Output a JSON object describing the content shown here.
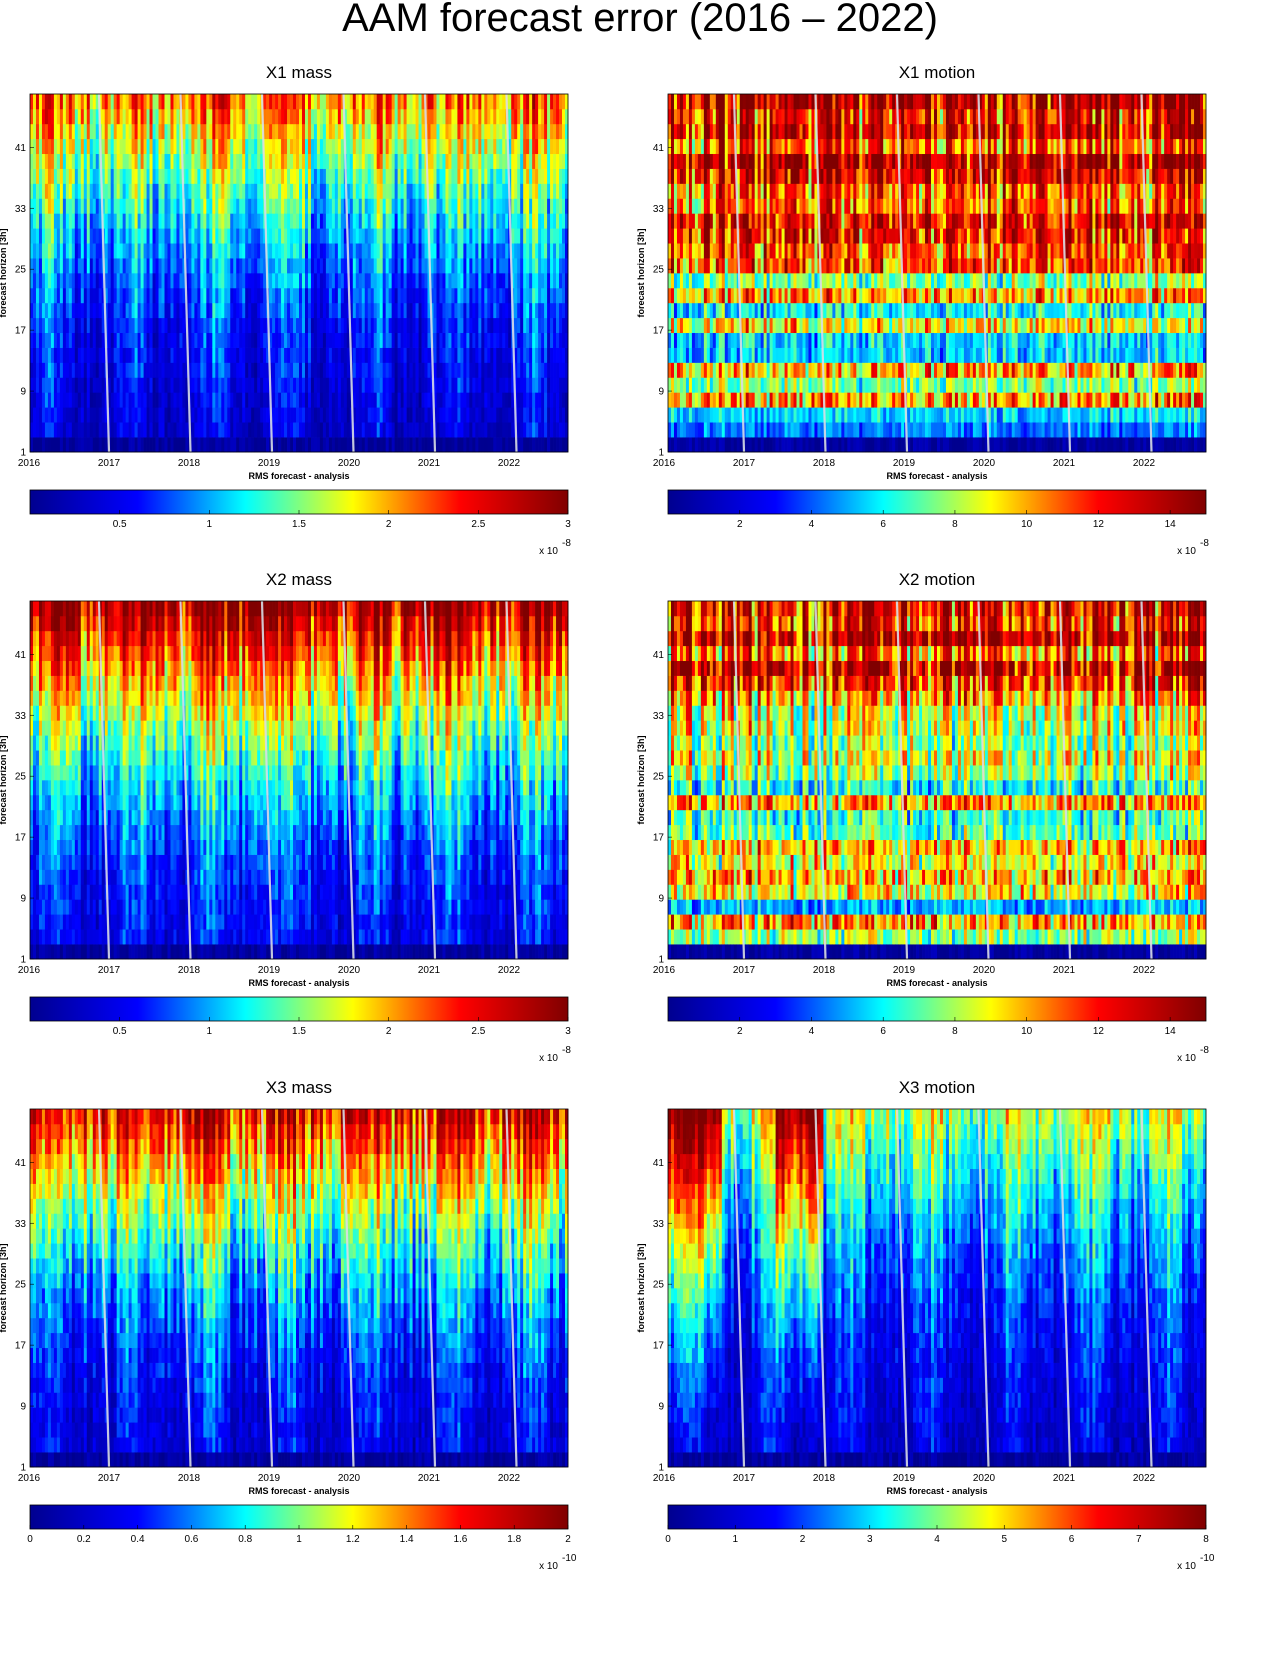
{
  "title": "AAM forecast error (2016 – 2022)",
  "xlabel": "RMS forecast - analysis",
  "ylabel": "forecast horizon [3h]",
  "colormap": [
    "#00008f",
    "#0000ff",
    "#00ffff",
    "#ffff00",
    "#ff0000",
    "#800000"
  ],
  "gap_line_color": "#d9dde6",
  "chart_data": [
    {
      "type": "heatmap",
      "title": "X1 mass",
      "x_ticks": [
        "2016",
        "2017",
        "2018",
        "2019",
        "2020",
        "2021",
        "2022"
      ],
      "y_ticks": [
        "1",
        "9",
        "17",
        "25",
        "33",
        "41"
      ],
      "x_range": [
        2016.0,
        2022.72
      ],
      "y_range": [
        1,
        48
      ],
      "colorbar": {
        "ticks": [
          "0.5",
          "1",
          "1.5",
          "2",
          "2.5",
          "3"
        ],
        "tick_values": [
          0.5,
          1,
          1.5,
          2,
          2.5,
          3
        ],
        "range": [
          0,
          3
        ],
        "multiplier": "x 10",
        "exponent": "-8"
      }
    },
    {
      "type": "heatmap",
      "title": "X1 motion",
      "x_ticks": [
        "2016",
        "2017",
        "2018",
        "2019",
        "2020",
        "2021",
        "2022"
      ],
      "y_ticks": [
        "1",
        "9",
        "17",
        "25",
        "33",
        "41"
      ],
      "x_range": [
        2016.0,
        2022.72
      ],
      "y_range": [
        1,
        48
      ],
      "colorbar": {
        "ticks": [
          "2",
          "4",
          "6",
          "8",
          "10",
          "12",
          "14"
        ],
        "tick_values": [
          2,
          4,
          6,
          8,
          10,
          12,
          14
        ],
        "range": [
          0,
          15
        ],
        "multiplier": "x 10",
        "exponent": "-8"
      }
    },
    {
      "type": "heatmap",
      "title": "X2 mass",
      "x_ticks": [
        "2016",
        "2017",
        "2018",
        "2019",
        "2020",
        "2021",
        "2022"
      ],
      "y_ticks": [
        "1",
        "9",
        "17",
        "25",
        "33",
        "41"
      ],
      "x_range": [
        2016.0,
        2022.72
      ],
      "y_range": [
        1,
        48
      ],
      "colorbar": {
        "ticks": [
          "0.5",
          "1",
          "1.5",
          "2",
          "2.5",
          "3"
        ],
        "tick_values": [
          0.5,
          1,
          1.5,
          2,
          2.5,
          3
        ],
        "range": [
          0,
          3
        ],
        "multiplier": "x 10",
        "exponent": "-8"
      }
    },
    {
      "type": "heatmap",
      "title": "X2 motion",
      "x_ticks": [
        "2016",
        "2017",
        "2018",
        "2019",
        "2020",
        "2021",
        "2022"
      ],
      "y_ticks": [
        "1",
        "9",
        "17",
        "25",
        "33",
        "41"
      ],
      "x_range": [
        2016.0,
        2022.72
      ],
      "y_range": [
        1,
        48
      ],
      "colorbar": {
        "ticks": [
          "2",
          "4",
          "6",
          "8",
          "10",
          "12",
          "14"
        ],
        "tick_values": [
          2,
          4,
          6,
          8,
          10,
          12,
          14
        ],
        "range": [
          0,
          15
        ],
        "multiplier": "x 10",
        "exponent": "-8"
      }
    },
    {
      "type": "heatmap",
      "title": "X3 mass",
      "x_ticks": [
        "2016",
        "2017",
        "2018",
        "2019",
        "2020",
        "2021",
        "2022"
      ],
      "y_ticks": [
        "1",
        "9",
        "17",
        "25",
        "33",
        "41"
      ],
      "x_range": [
        2016.0,
        2022.72
      ],
      "y_range": [
        1,
        48
      ],
      "colorbar": {
        "ticks": [
          "0",
          "0.2",
          "0.4",
          "0.6",
          "0.8",
          "1",
          "1.2",
          "1.4",
          "1.6",
          "1.8",
          "2"
        ],
        "tick_values": [
          0,
          0.2,
          0.4,
          0.6,
          0.8,
          1,
          1.2,
          1.4,
          1.6,
          1.8,
          2
        ],
        "range": [
          0,
          2
        ],
        "multiplier": "x 10",
        "exponent": "-10"
      }
    },
    {
      "type": "heatmap",
      "title": "X3 motion",
      "x_ticks": [
        "2016",
        "2017",
        "2018",
        "2019",
        "2020",
        "2021",
        "2022"
      ],
      "y_ticks": [
        "1",
        "9",
        "17",
        "25",
        "33",
        "41"
      ],
      "x_range": [
        2016.0,
        2022.72
      ],
      "y_range": [
        1,
        48
      ],
      "colorbar": {
        "ticks": [
          "0",
          "1",
          "2",
          "3",
          "4",
          "5",
          "6",
          "7",
          "8"
        ],
        "tick_values": [
          0,
          1,
          2,
          3,
          4,
          5,
          6,
          7,
          8
        ],
        "range": [
          0,
          8
        ],
        "multiplier": "x 10",
        "exponent": "-10"
      }
    }
  ]
}
